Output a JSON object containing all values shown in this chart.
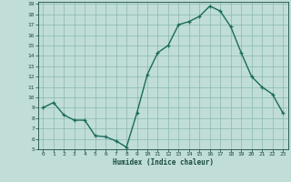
{
  "x": [
    0,
    1,
    2,
    3,
    4,
    5,
    6,
    7,
    8,
    9,
    10,
    11,
    12,
    13,
    14,
    15,
    16,
    17,
    18,
    19,
    20,
    21,
    22,
    23
  ],
  "y": [
    9.0,
    9.5,
    8.3,
    7.8,
    7.8,
    6.3,
    6.2,
    5.8,
    5.2,
    8.5,
    12.2,
    14.3,
    15.0,
    17.0,
    17.3,
    17.8,
    18.8,
    18.3,
    16.8,
    14.3,
    12.0,
    11.0,
    10.3,
    8.5
  ],
  "line_color": "#1a6b5a",
  "bg_color": "#c0ddd8",
  "grid_color": "#8ab8b0",
  "text_color": "#1a4a40",
  "xlabel": "Humidex (Indice chaleur)",
  "ylim": [
    5,
    19
  ],
  "xlim": [
    -0.5,
    23.5
  ],
  "yticks": [
    5,
    6,
    7,
    8,
    9,
    10,
    11,
    12,
    13,
    14,
    15,
    16,
    17,
    18,
    19
  ],
  "xticks": [
    0,
    1,
    2,
    3,
    4,
    5,
    6,
    7,
    8,
    9,
    10,
    11,
    12,
    13,
    14,
    15,
    16,
    17,
    18,
    19,
    20,
    21,
    22,
    23
  ],
  "marker": "+",
  "linewidth": 1.0,
  "markersize": 3.5
}
